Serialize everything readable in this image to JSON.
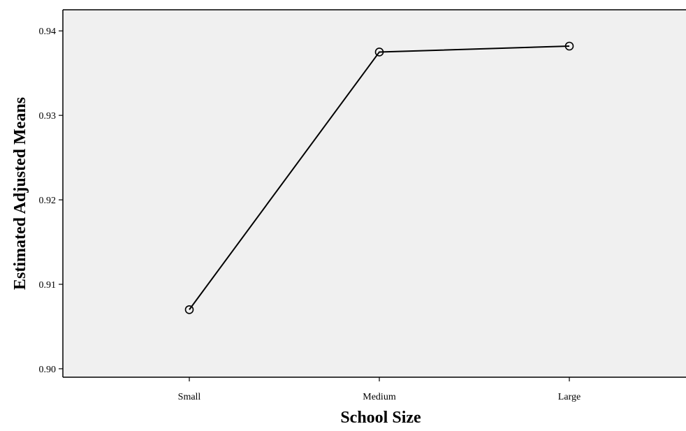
{
  "chart_data": {
    "type": "line",
    "title": "",
    "xlabel": "School Size",
    "ylabel": "Estimated Adjusted Means",
    "categories": [
      "Small",
      "Medium",
      "Large"
    ],
    "series": [
      {
        "values": [
          0.907,
          0.9375,
          0.9382
        ],
        "marker": "open-circle"
      }
    ],
    "ylim": [
      0.899,
      0.9425
    ],
    "yticks": [
      0.9,
      0.91,
      0.92,
      0.93,
      0.94
    ],
    "ytick_labels": [
      "0.90",
      "0.91",
      "0.92",
      "0.93",
      "0.94"
    ],
    "grid": false,
    "legend": "none",
    "colors": {
      "plot_background": "#f0f0f0",
      "line": "#000000",
      "axis": "#000000"
    }
  }
}
